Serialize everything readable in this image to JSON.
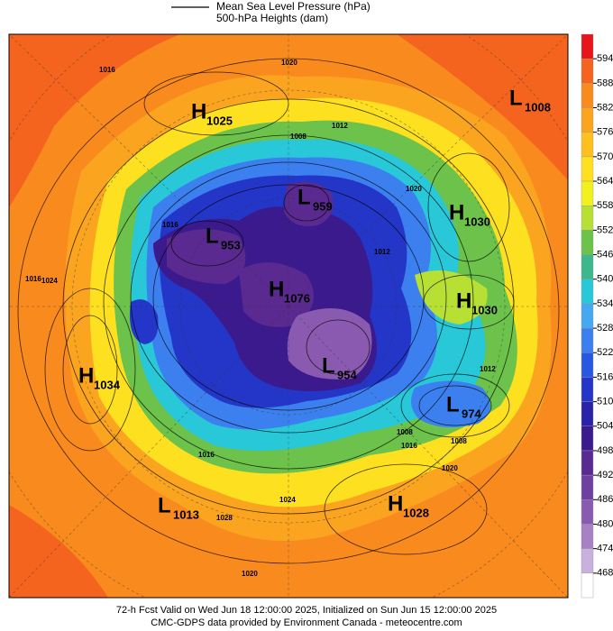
{
  "header": {
    "legend_line1": "Mean Sea Level Pressure (hPa)",
    "legend_line2": "500-hPa Heights (dam)"
  },
  "colorbar": {
    "levels": [
      594,
      588,
      582,
      576,
      570,
      564,
      558,
      552,
      546,
      540,
      534,
      528,
      522,
      516,
      510,
      504,
      498,
      492,
      486,
      480,
      474,
      468
    ],
    "colors": [
      "#e8141c",
      "#f4641e",
      "#f98a1e",
      "#fba41f",
      "#fdc01f",
      "#fde01f",
      "#f2f01e",
      "#b8e034",
      "#6cc24a",
      "#3cb88c",
      "#28c8d8",
      "#46a8f0",
      "#3c80f0",
      "#2858e0",
      "#2336c8",
      "#2a22a8",
      "#3a1a8c",
      "#5a2a90",
      "#7040a0",
      "#8a5ab0",
      "#a880c4",
      "#cab0dc",
      "#ffffff"
    ]
  },
  "centers": [
    {
      "letter": "H",
      "value": 1025
    },
    {
      "letter": "L",
      "value": 1008
    },
    {
      "letter": "H",
      "value": 1030
    },
    {
      "letter": "H",
      "value": 1030
    },
    {
      "letter": "L",
      "value": 953
    },
    {
      "letter": "L",
      "value": 959
    },
    {
      "letter": "H",
      "value": 1076
    },
    {
      "letter": "L",
      "value": 954
    },
    {
      "letter": "H",
      "value": 1034
    },
    {
      "letter": "L",
      "value": 974
    },
    {
      "letter": "L",
      "value": 1013
    },
    {
      "letter": "H",
      "value": 1028
    }
  ],
  "isobar_labels": [
    1016,
    1020,
    1012,
    1008,
    1016,
    1024,
    1020,
    1016,
    1012,
    1008,
    1016,
    1024,
    1028,
    1020,
    1016,
    1008,
    1012,
    1020
  ],
  "footer": {
    "line1": "72-h Fcst Valid on Wed Jun 18 12:00:00 2025, Initialized on Sun Jun 15 12:00:00 2025",
    "line2": "CMC-GDPS data provided by Environment Canada - meteocentre.com"
  }
}
